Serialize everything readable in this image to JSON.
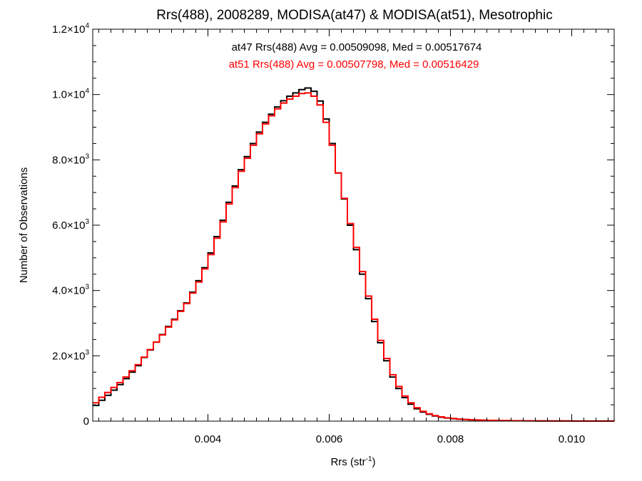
{
  "chart_data": {
    "type": "line",
    "title": "Rrs(488), 2008289, MODISA(at47) & MODISA(at51), Mesotrophic",
    "xlabel": {
      "base": "Rrs (str",
      "sup": "-1",
      "end": ")"
    },
    "ylabel": "Number of Observations",
    "xlim": [
      0.0021,
      0.0107
    ],
    "ylim": [
      0,
      12000
    ],
    "x_ticks": [
      {
        "value": 0.004,
        "label": "0.004"
      },
      {
        "value": 0.006,
        "label": "0.006"
      },
      {
        "value": 0.008,
        "label": "0.008"
      },
      {
        "value": 0.01,
        "label": "0.010"
      }
    ],
    "y_ticks": [
      {
        "value": 0,
        "mant": "0",
        "exp": ""
      },
      {
        "value": 2000,
        "mant": "2.0×10",
        "exp": "3"
      },
      {
        "value": 4000,
        "mant": "4.0×10",
        "exp": "3"
      },
      {
        "value": 6000,
        "mant": "6.0×10",
        "exp": "3"
      },
      {
        "value": 8000,
        "mant": "8.0×10",
        "exp": "3"
      },
      {
        "value": 10000,
        "mant": "1.0×10",
        "exp": "4"
      },
      {
        "value": 12000,
        "mant": "1.2×10",
        "exp": "4"
      }
    ],
    "grid": false,
    "step": true,
    "annotations": [
      {
        "text": "at47 Rrs(488) Avg = 0.00509098, Med = 0.00517674",
        "color": "#000000"
      },
      {
        "text": "at51 Rrs(488) Avg = 0.00507798, Med = 0.00516429",
        "color": "#ff0000"
      }
    ],
    "series": [
      {
        "color": "#000000",
        "x": [
          0.0021,
          0.0022,
          0.0023,
          0.0024,
          0.0025,
          0.0026,
          0.0027,
          0.0028,
          0.0029,
          0.003,
          0.0031,
          0.0032,
          0.0033,
          0.0034,
          0.0035,
          0.0036,
          0.0037,
          0.0038,
          0.0039,
          0.004,
          0.0041,
          0.0042,
          0.0043,
          0.0044,
          0.0045,
          0.0046,
          0.0047,
          0.0048,
          0.0049,
          0.005,
          0.0051,
          0.0052,
          0.0053,
          0.0054,
          0.0055,
          0.0056,
          0.0057,
          0.0058,
          0.0059,
          0.006,
          0.0061,
          0.0062,
          0.0063,
          0.0064,
          0.0065,
          0.0066,
          0.0067,
          0.0068,
          0.0069,
          0.007,
          0.0071,
          0.0072,
          0.0073,
          0.0074,
          0.0075,
          0.0076,
          0.0077,
          0.0078,
          0.0079,
          0.008,
          0.0081,
          0.0082,
          0.0083,
          0.0084,
          0.0085,
          0.0086,
          0.0088,
          0.009,
          0.0092,
          0.0094,
          0.0096,
          0.0098,
          0.01,
          0.0102,
          0.0104,
          0.0107
        ],
        "values": [
          480,
          640,
          790,
          950,
          1120,
          1300,
          1500,
          1700,
          1950,
          2180,
          2420,
          2650,
          2900,
          3120,
          3380,
          3620,
          3950,
          4300,
          4700,
          5150,
          5650,
          6150,
          6700,
          7200,
          7700,
          8100,
          8500,
          8850,
          9150,
          9400,
          9620,
          9810,
          9950,
          10050,
          10150,
          10200,
          10100,
          9800,
          9250,
          8500,
          7600,
          6800,
          6000,
          5250,
          4500,
          3750,
          3050,
          2400,
          1850,
          1350,
          1000,
          720,
          520,
          380,
          280,
          210,
          160,
          120,
          95,
          75,
          60,
          48,
          40,
          32,
          26,
          22,
          16,
          12,
          9,
          7,
          5,
          4,
          3,
          2,
          2,
          1
        ]
      },
      {
        "color": "#ff0000",
        "x": [
          0.0021,
          0.0022,
          0.0023,
          0.0024,
          0.0025,
          0.0026,
          0.0027,
          0.0028,
          0.0029,
          0.003,
          0.0031,
          0.0032,
          0.0033,
          0.0034,
          0.0035,
          0.0036,
          0.0037,
          0.0038,
          0.0039,
          0.004,
          0.0041,
          0.0042,
          0.0043,
          0.0044,
          0.0045,
          0.0046,
          0.0047,
          0.0048,
          0.0049,
          0.005,
          0.0051,
          0.0052,
          0.0053,
          0.0054,
          0.0055,
          0.0056,
          0.0057,
          0.0058,
          0.0059,
          0.006,
          0.0061,
          0.0062,
          0.0063,
          0.0064,
          0.0065,
          0.0066,
          0.0067,
          0.0068,
          0.0069,
          0.007,
          0.0071,
          0.0072,
          0.0073,
          0.0074,
          0.0075,
          0.0076,
          0.0077,
          0.0078,
          0.0079,
          0.008,
          0.0081,
          0.0082,
          0.0083,
          0.0084,
          0.0085,
          0.0086,
          0.0088,
          0.009,
          0.0092,
          0.0094,
          0.0096,
          0.0098,
          0.01,
          0.0102,
          0.0104,
          0.0107
        ],
        "values": [
          560,
          730,
          880,
          1030,
          1180,
          1350,
          1540,
          1730,
          1960,
          2190,
          2420,
          2640,
          2880,
          3100,
          3360,
          3600,
          3920,
          4260,
          4660,
          5100,
          5600,
          6100,
          6650,
          7150,
          7650,
          8050,
          8450,
          8800,
          9100,
          9350,
          9560,
          9740,
          9860,
          9950,
          10030,
          10050,
          9950,
          9680,
          9150,
          8450,
          7600,
          6820,
          6050,
          5320,
          4580,
          3830,
          3120,
          2470,
          1920,
          1420,
          1060,
          770,
          560,
          410,
          300,
          225,
          170,
          130,
          100,
          80,
          64,
          52,
          43,
          35,
          28,
          23,
          17,
          13,
          10,
          8,
          6,
          4,
          3,
          2,
          2,
          1
        ]
      }
    ]
  }
}
